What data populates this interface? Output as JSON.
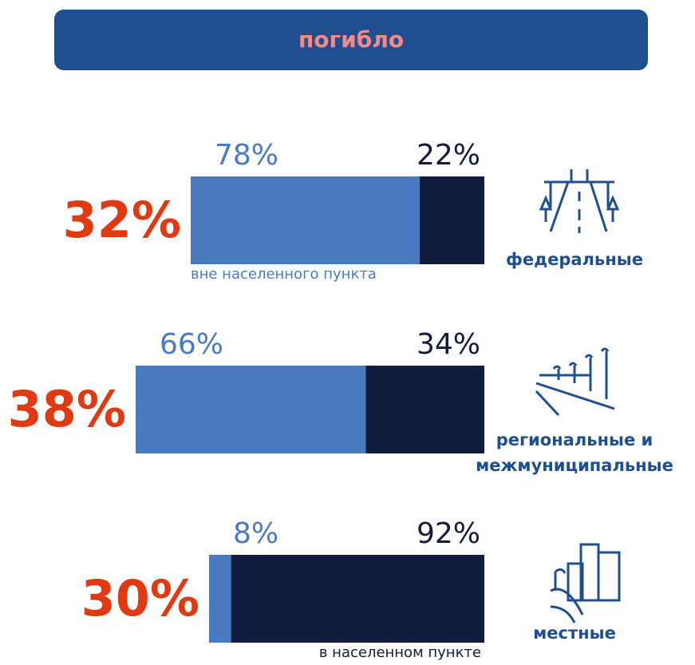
{
  "chart_data": {
    "type": "bar",
    "title": "погибло",
    "categories": [
      "федеральные",
      "региональные и межмуниципальные",
      "местные"
    ],
    "shares": [
      32,
      38,
      30
    ],
    "share_labels": [
      "32%",
      "38%",
      "30%"
    ],
    "series": [
      {
        "name": "вне населенного пункта",
        "color": "#4a7abf",
        "values": [
          78,
          66,
          8
        ],
        "value_labels": [
          "78%",
          "66%",
          "8%"
        ]
      },
      {
        "name": "в населенном пункте",
        "color": "#121c3f",
        "values": [
          22,
          34,
          92
        ],
        "value_labels": [
          "22%",
          "34%",
          "92%"
        ]
      }
    ]
  }
}
